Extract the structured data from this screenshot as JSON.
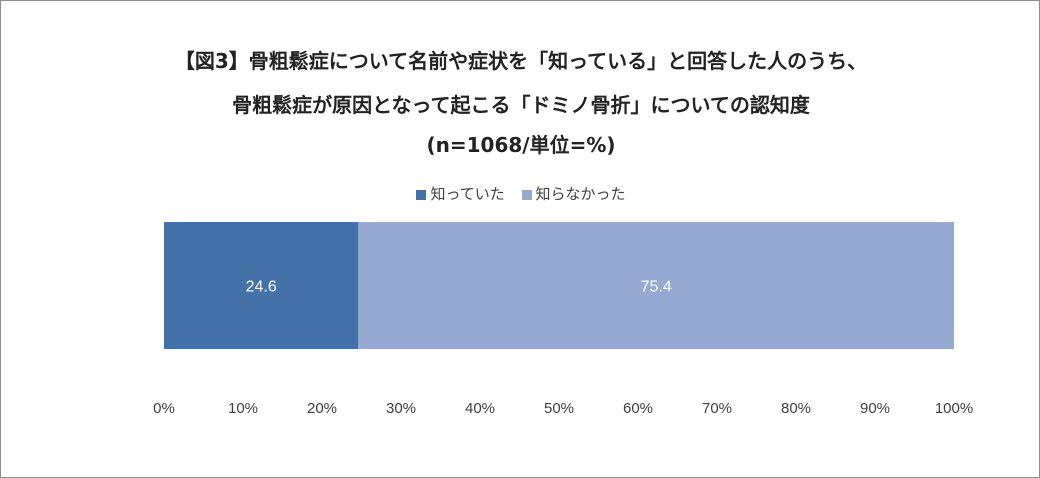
{
  "title_lines": [
    "【図3】骨粗鬆症について名前や症状を「知っている」と回答した人のうち、",
    "骨粗鬆症が原因となって起こる「ドミノ骨折」についての認知度",
    "(n=1068/単位=%)"
  ],
  "colors": {
    "known": "#4472a8",
    "unknown": "#95a9d1",
    "label": "#ffffff",
    "tick": "#404040"
  },
  "chart_data": {
    "type": "bar",
    "orientation": "horizontal",
    "stacked": true,
    "title": "【図3】骨粗鬆症について名前や症状を「知っている」と回答した人のうち、骨粗鬆症が原因となって起こる「ドミノ骨折」についての認知度 (n=1068/単位=%)",
    "series": [
      {
        "name": "知っていた",
        "values": [
          24.6
        ]
      },
      {
        "name": "知らなかった",
        "values": [
          75.4
        ]
      }
    ],
    "xlim": [
      0,
      100
    ],
    "x_ticks": [
      "0%",
      "10%",
      "20%",
      "30%",
      "40%",
      "50%",
      "60%",
      "70%",
      "80%",
      "90%",
      "100%"
    ],
    "data_labels": [
      "24.6",
      "75.4"
    ],
    "legend_position": "top",
    "grid": false
  }
}
